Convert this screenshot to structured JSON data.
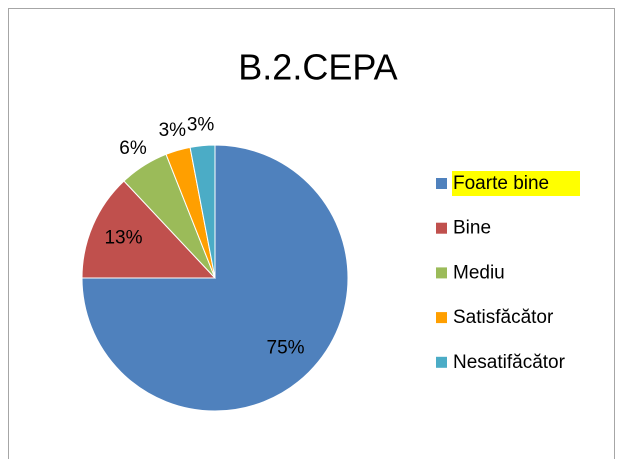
{
  "chart_data": {
    "type": "pie",
    "title": "B.2.CEPA",
    "categories": [
      "Foarte bine",
      "Bine",
      "Mediu",
      "Satisfăcător",
      "Nesatifăcător"
    ],
    "values": [
      75,
      13,
      6,
      3,
      3
    ],
    "value_labels": [
      "75%",
      "13%",
      "6%",
      "3%",
      "3%"
    ],
    "colors": [
      "#4f81bd",
      "#c0504d",
      "#9bbb59",
      "#ff9f00",
      "#4bacc6"
    ],
    "legend": "right"
  }
}
